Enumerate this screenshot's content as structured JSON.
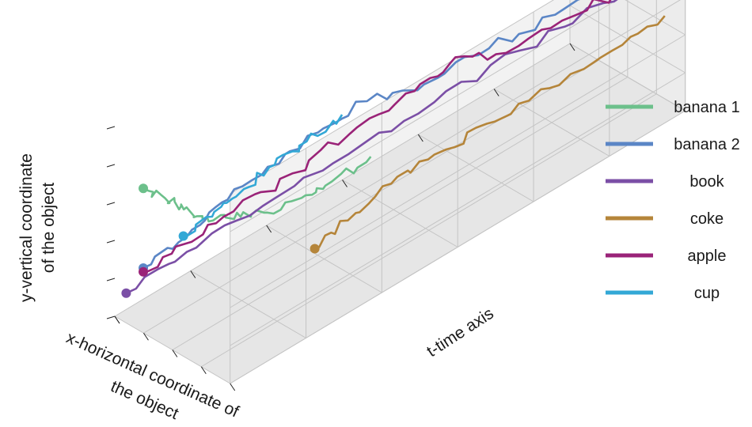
{
  "chart_data": {
    "type": "line",
    "subtype": "3d-trajectory",
    "title": "",
    "xlabel": [
      "x-horizontal coordinate of",
      "the object"
    ],
    "ylabel": [
      "y-vertical coordinate",
      "of the object"
    ],
    "tlabel": "t-time axis",
    "grid": true,
    "legend_position": "right",
    "series": [
      {
        "name": "banana 1",
        "color": "#6cc08b",
        "points": [
          [
            0.05,
            0.62,
            0.05
          ],
          [
            0.12,
            0.55,
            0.08
          ],
          [
            0.18,
            0.5,
            0.1
          ],
          [
            0.24,
            0.44,
            0.12
          ],
          [
            0.3,
            0.41,
            0.14
          ],
          [
            0.38,
            0.4,
            0.18
          ],
          [
            0.45,
            0.39,
            0.22
          ],
          [
            0.55,
            0.43,
            0.28
          ],
          [
            0.62,
            0.47,
            0.32
          ],
          [
            0.72,
            0.55,
            0.38
          ]
        ],
        "start_marker": true
      },
      {
        "name": "banana 2",
        "color": "#5b86c6",
        "points": [
          [
            0.05,
            0.2,
            0.05
          ],
          [
            0.15,
            0.3,
            0.12
          ],
          [
            0.22,
            0.42,
            0.18
          ],
          [
            0.3,
            0.52,
            0.26
          ],
          [
            0.38,
            0.6,
            0.35
          ],
          [
            0.45,
            0.66,
            0.44
          ],
          [
            0.55,
            0.64,
            0.54
          ],
          [
            0.64,
            0.69,
            0.66
          ],
          [
            0.74,
            0.73,
            0.78
          ],
          [
            0.85,
            0.78,
            0.9
          ],
          [
            0.95,
            0.82,
            0.98
          ]
        ],
        "start_marker": true
      },
      {
        "name": "book",
        "color": "#7b4fa6",
        "points": [
          [
            0.02,
            0.1,
            0.02
          ],
          [
            0.15,
            0.22,
            0.12
          ],
          [
            0.3,
            0.33,
            0.25
          ],
          [
            0.45,
            0.44,
            0.4
          ],
          [
            0.6,
            0.55,
            0.55
          ],
          [
            0.75,
            0.66,
            0.7
          ],
          [
            0.88,
            0.74,
            0.85
          ],
          [
            0.98,
            0.78,
            0.98
          ]
        ],
        "start_marker": true
      },
      {
        "name": "coke",
        "color": "#b5853a",
        "points": [
          [
            0.55,
            0.12,
            0.3
          ],
          [
            0.6,
            0.2,
            0.36
          ],
          [
            0.66,
            0.3,
            0.44
          ],
          [
            0.72,
            0.36,
            0.52
          ],
          [
            0.78,
            0.4,
            0.62
          ],
          [
            0.85,
            0.44,
            0.74
          ],
          [
            0.92,
            0.49,
            0.86
          ],
          [
            0.98,
            0.55,
            0.96
          ]
        ],
        "start_marker": true
      },
      {
        "name": "apple",
        "color": "#9a2378",
        "points": [
          [
            0.05,
            0.18,
            0.05
          ],
          [
            0.14,
            0.26,
            0.12
          ],
          [
            0.24,
            0.35,
            0.2
          ],
          [
            0.36,
            0.45,
            0.3
          ],
          [
            0.46,
            0.55,
            0.4
          ],
          [
            0.55,
            0.65,
            0.5
          ],
          [
            0.62,
            0.72,
            0.58
          ],
          [
            0.7,
            0.68,
            0.66
          ],
          [
            0.8,
            0.72,
            0.78
          ],
          [
            0.9,
            0.76,
            0.9
          ],
          [
            0.98,
            0.8,
            0.98
          ]
        ],
        "start_marker": true
      },
      {
        "name": "cup",
        "color": "#33a8d6",
        "points": [
          [
            0.2,
            0.35,
            0.1
          ],
          [
            0.27,
            0.43,
            0.15
          ],
          [
            0.33,
            0.5,
            0.2
          ],
          [
            0.4,
            0.58,
            0.25
          ],
          [
            0.48,
            0.66,
            0.3
          ],
          [
            0.55,
            0.74,
            0.36
          ]
        ],
        "start_marker": true
      }
    ]
  }
}
